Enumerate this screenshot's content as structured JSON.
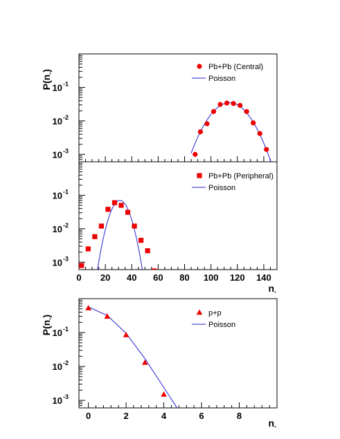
{
  "colors": {
    "marker": "#ee0000",
    "fit": "#2222cc",
    "axis": "#000000"
  },
  "chart_data": [
    {
      "id": "central",
      "type": "scatter",
      "ylabel": "P(n-)",
      "xlabel": "",
      "xlim": [
        0,
        150
      ],
      "ylim": [
        0.0006,
        1.0
      ],
      "yscale": "log",
      "xtick_labels": [],
      "ytick_labels": [
        {
          "value": 0.001,
          "base": "10",
          "exp": "-3"
        },
        {
          "value": 0.01,
          "base": "10",
          "exp": "-2"
        },
        {
          "value": 0.1,
          "base": "10",
          "exp": "-1"
        }
      ],
      "marker": "circle",
      "legend_position": "top-right",
      "series": [
        {
          "name": "Pb+Pb (Central)",
          "x": [
            88,
            92,
            97,
            102,
            107,
            112,
            117,
            122,
            127,
            132,
            137,
            142
          ],
          "y": [
            0.001,
            0.0047,
            0.0082,
            0.019,
            0.031,
            0.034,
            0.033,
            0.029,
            0.019,
            0.0087,
            0.0042,
            0.0014
          ]
        },
        {
          "name": "Poisson",
          "curve": "poisson",
          "mean": 114,
          "sigma": 11,
          "peak": 0.035,
          "xrange": [
            85,
            146
          ]
        }
      ]
    },
    {
      "id": "peripheral",
      "type": "scatter",
      "ylabel": "",
      "xlabel": "n-",
      "xlim": [
        0,
        150
      ],
      "ylim": [
        0.0006,
        1.0
      ],
      "yscale": "log",
      "xtick_labels": [
        "0",
        "20",
        "40",
        "60",
        "80",
        "100",
        "120",
        "140"
      ],
      "xtick_values": [
        0,
        20,
        40,
        60,
        80,
        100,
        120,
        140
      ],
      "ytick_labels": [
        {
          "value": 0.001,
          "base": "10",
          "exp": "-3"
        },
        {
          "value": 0.01,
          "base": "10",
          "exp": "-2"
        },
        {
          "value": 0.1,
          "base": "10",
          "exp": "-1"
        }
      ],
      "marker": "square",
      "legend_position": "top-right",
      "series": [
        {
          "name": "Pb+Pb (Peripheral)",
          "x": [
            2,
            7,
            12,
            17,
            22,
            27,
            32,
            37,
            42,
            47,
            52,
            57
          ],
          "y": [
            0.0008,
            0.0025,
            0.0058,
            0.012,
            0.038,
            0.06,
            0.05,
            0.031,
            0.012,
            0.0045,
            0.0022,
            0.00055
          ]
        },
        {
          "name": "Poisson",
          "curve": "poisson",
          "mean": 31,
          "sigma": 5.5,
          "peak": 0.07,
          "xrange": [
            13,
            50
          ]
        }
      ]
    },
    {
      "id": "pp",
      "type": "scatter",
      "ylabel": "P(n-)",
      "xlabel": "n-",
      "xlim": [
        -0.5,
        10
      ],
      "ylim": [
        0.0006,
        1.0
      ],
      "yscale": "log",
      "xtick_labels": [
        "0",
        "2",
        "4",
        "6",
        "8"
      ],
      "xtick_values": [
        0,
        2,
        4,
        6,
        8
      ],
      "ytick_labels": [
        {
          "value": 0.001,
          "base": "10",
          "exp": "-3"
        },
        {
          "value": 0.01,
          "base": "10",
          "exp": "-2"
        },
        {
          "value": 0.1,
          "base": "10",
          "exp": "-1"
        }
      ],
      "marker": "triangle",
      "legend_position": "top-right",
      "series": [
        {
          "name": "p+p",
          "x": [
            0,
            1,
            2,
            3,
            4
          ],
          "y": [
            0.53,
            0.3,
            0.085,
            0.013,
            0.0015
          ]
        },
        {
          "name": "Poisson",
          "curve": "points",
          "x": [
            0,
            1,
            2,
            3,
            4,
            4.7
          ],
          "y": [
            0.57,
            0.32,
            0.095,
            0.017,
            0.0024,
            0.0006
          ]
        }
      ]
    }
  ]
}
